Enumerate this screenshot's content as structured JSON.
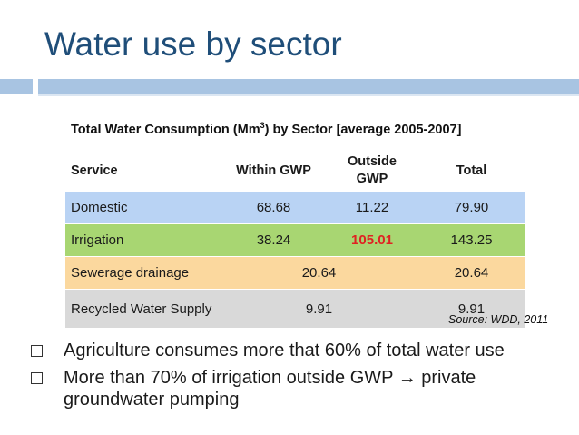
{
  "slide": {
    "title": "Water use by sector",
    "colors": {
      "title": "#1f4e79",
      "rule": "#a8c4e2",
      "highlight": "#e02222"
    }
  },
  "table": {
    "caption_before_sup": "Total Water Consumption (Mm",
    "caption_sup": "3",
    "caption_after_sup": ") by Sector [average 2005-2007]",
    "headers": [
      "Service",
      "Within GWP",
      "Outside GWP",
      "Total"
    ],
    "rows": [
      {
        "service": "Domestic",
        "within": "68.68",
        "outside": "11.22",
        "total": "79.90",
        "color": "#b9d3f4"
      },
      {
        "service": "Irrigation",
        "within": "38.24",
        "outside": "105.01",
        "total": "143.25",
        "color": "#a8d672"
      },
      {
        "service": "Sewerage drainage",
        "combined": "20.64",
        "total": "20.64",
        "color": "#fbd89e"
      },
      {
        "service": "Recycled Water Supply",
        "combined": "9.91",
        "total": "9.91",
        "color": "#d9d9d9"
      }
    ],
    "source": "Source: WDD, 2011"
  },
  "bullets": [
    "Agriculture consumes more that 60% of total water use",
    "More than 70% of irrigation outside GWP → private groundwater pumping"
  ]
}
